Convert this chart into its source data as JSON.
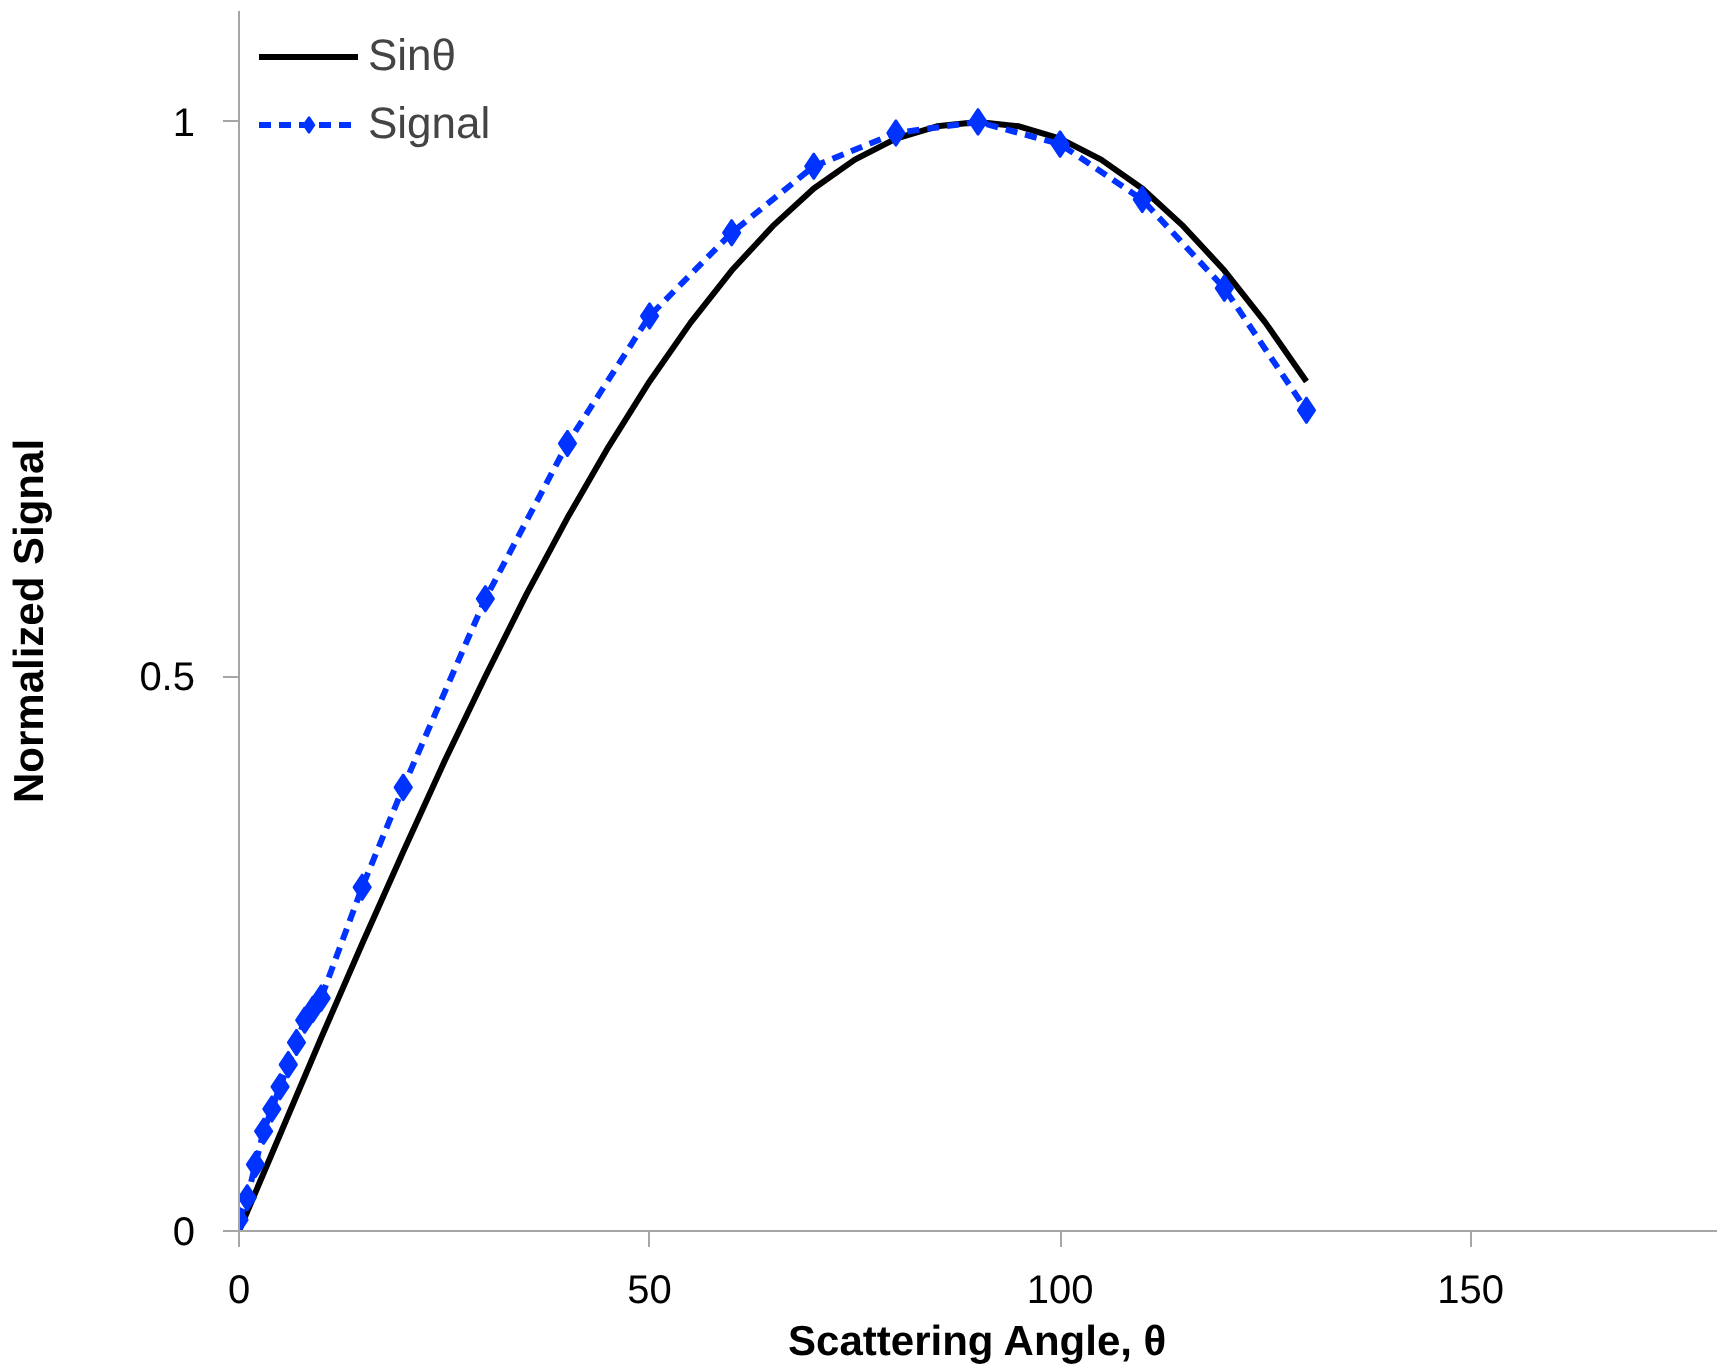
{
  "chart_data": {
    "type": "line",
    "xlabel": "Scattering Angle, θ",
    "ylabel": "Normalized Signal",
    "xlim": [
      0,
      180
    ],
    "ylim": [
      0,
      1.1
    ],
    "xticks": [
      0,
      50,
      100,
      150
    ],
    "yticks": [
      0,
      0.5,
      1
    ],
    "grid": false,
    "legend": "top left",
    "series": [
      {
        "name": "Sinθ",
        "color": "#000000",
        "marker": "none",
        "line_style": "solid",
        "x": [
          0,
          5,
          10,
          15,
          20,
          25,
          30,
          35,
          40,
          45,
          50,
          55,
          60,
          65,
          70,
          75,
          80,
          85,
          90,
          95,
          100,
          105,
          110,
          115,
          120,
          125,
          130
        ],
        "values": [
          0,
          0.087,
          0.174,
          0.259,
          0.342,
          0.423,
          0.5,
          0.574,
          0.643,
          0.707,
          0.766,
          0.819,
          0.866,
          0.906,
          0.94,
          0.966,
          0.985,
          0.996,
          1,
          0.996,
          0.985,
          0.966,
          0.94,
          0.906,
          0.866,
          0.819,
          0.766
        ]
      },
      {
        "name": "Signal",
        "color": "#0033ff",
        "marker": "diamond",
        "line_style": "dashed",
        "x": [
          0,
          1,
          2,
          3,
          4,
          5,
          6,
          7,
          8,
          9,
          10,
          15,
          20,
          30,
          40,
          50,
          60,
          70,
          80,
          90,
          100,
          110,
          120,
          130
        ],
        "values": [
          0.01,
          0.03,
          0.06,
          0.09,
          0.11,
          0.13,
          0.15,
          0.17,
          0.19,
          0.2,
          0.21,
          0.31,
          0.4,
          0.57,
          0.71,
          0.825,
          0.9,
          0.96,
          0.99,
          1,
          0.98,
          0.93,
          0.85,
          0.74
        ]
      }
    ]
  }
}
